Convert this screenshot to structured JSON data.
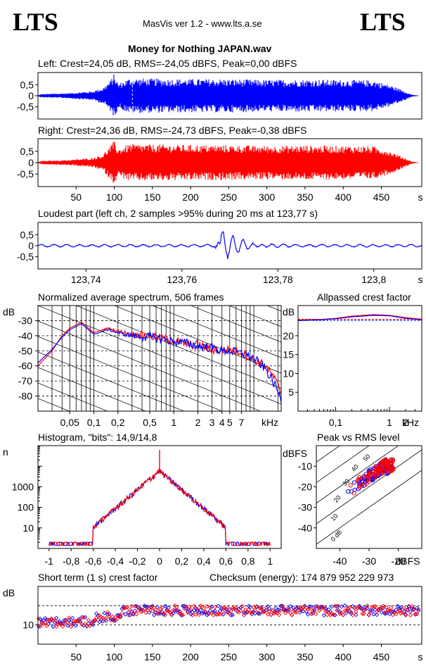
{
  "header": {
    "logo_left": "LTS",
    "logo_right": "LTS",
    "app": "MasVis ver 1.2 - www.lts.a.se",
    "file_title": "Money for Nothing JAPAN.wav"
  },
  "panels": {
    "left_label": "Left: Crest=24,05 dB, RMS=-24,05 dBFS, Peak=0,00 dBFS",
    "right_label": "Right: Crest=24,36 dB, RMS=-24,73 dBFS, Peak=-0,38 dBFS",
    "loudest_label": "Loudest part (left  ch, 2 samples >95% during 20 ms at 123,77 s)",
    "spectrum_label": "Normalized average spectrum, 506 frames",
    "allpass_label": "Allpassed crest factor",
    "histogram_label": "Histogram, \"bits\": 14,9/14,8",
    "pvr_label": "Peak vs RMS level",
    "shortterm_label": "Short term (1 s) crest factor",
    "checksum_label": "Checksum (energy):  174 879 952 229 973"
  },
  "colors": {
    "left": "#0000ff",
    "right": "#ff0000",
    "grid": "#000000"
  },
  "chart_data": [
    {
      "type": "area",
      "name": "left-waveform",
      "y_ticks": [
        "0,5",
        "0",
        "-0,5"
      ],
      "ylim": [
        -1,
        1
      ],
      "xlim": [
        0,
        503
      ],
      "envelope_s": [
        0,
        2,
        5,
        15,
        40,
        70,
        85,
        95,
        100,
        105,
        120,
        150,
        200,
        250,
        300,
        350,
        400,
        440,
        460,
        475,
        490,
        500
      ],
      "envelope_amp": [
        0.01,
        0.05,
        0.08,
        0.09,
        0.12,
        0.2,
        0.35,
        0.7,
        1.0,
        0.55,
        0.8,
        0.78,
        0.76,
        0.76,
        0.72,
        0.74,
        0.72,
        0.7,
        0.5,
        0.3,
        0.05,
        0.0
      ],
      "marker_s": 123.77
    },
    {
      "type": "area",
      "name": "right-waveform",
      "y_ticks": [
        "0,5",
        "0",
        "-0,5"
      ],
      "x_ticks": [
        "50",
        "100",
        "150",
        "200",
        "250",
        "300",
        "350",
        "400",
        "450",
        "s"
      ],
      "x_tick_values": [
        50,
        100,
        150,
        200,
        250,
        300,
        350,
        400,
        450
      ],
      "ylim": [
        -1,
        1
      ],
      "xlim": [
        0,
        503
      ],
      "envelope_s": [
        0,
        2,
        5,
        15,
        40,
        70,
        85,
        95,
        100,
        105,
        120,
        150,
        200,
        250,
        300,
        350,
        400,
        440,
        460,
        475,
        490,
        500
      ],
      "envelope_amp": [
        0.01,
        0.05,
        0.08,
        0.09,
        0.12,
        0.2,
        0.35,
        0.75,
        0.95,
        0.6,
        0.82,
        0.8,
        0.78,
        0.77,
        0.74,
        0.76,
        0.74,
        0.72,
        0.52,
        0.3,
        0.05,
        0.0
      ]
    },
    {
      "type": "line",
      "name": "loudest-part",
      "y_ticks": [
        "0,5",
        "0",
        "-0,5"
      ],
      "x_ticks": [
        "123,74",
        "123,76",
        "123,78",
        "123,8",
        "s"
      ],
      "x_tick_values": [
        123.74,
        123.76,
        123.78,
        123.8
      ],
      "xlim": [
        123.73,
        123.81
      ],
      "ylim": [
        -1,
        1
      ],
      "transient_s": 123.768
    },
    {
      "type": "line",
      "name": "average-spectrum",
      "ylabel": "dB",
      "xlabel": "kHz",
      "y_ticks": [
        "-30",
        "-40",
        "-50",
        "-60",
        "-70",
        "-80"
      ],
      "y_tick_values": [
        -30,
        -40,
        -50,
        -60,
        -70,
        -80
      ],
      "ylim": [
        -90,
        -20
      ],
      "x_ticks": [
        "0,05",
        "0,1",
        "0,2",
        "0,5",
        "1",
        "2",
        "3",
        "4",
        "5",
        "7"
      ],
      "x_tick_values": [
        0.05,
        0.1,
        0.2,
        0.5,
        1,
        2,
        3,
        4,
        5,
        7
      ],
      "xlim_khz": [
        0.02,
        22
      ],
      "x_khz": [
        0.02,
        0.03,
        0.04,
        0.05,
        0.07,
        0.1,
        0.15,
        0.2,
        0.3,
        0.5,
        0.7,
        1,
        1.5,
        2,
        3,
        4,
        5,
        7,
        10,
        14,
        18,
        22
      ],
      "series": [
        {
          "values": [
            -60,
            -50,
            -40,
            -35,
            -31,
            -38,
            -35,
            -37,
            -39,
            -40,
            -42,
            -43,
            -46,
            -46,
            -49,
            -50,
            -49,
            -51,
            -56,
            -60,
            -68,
            -78
          ]
        },
        {
          "values": [
            -58,
            -49,
            -41,
            -36,
            -32,
            -39,
            -36,
            -38,
            -40,
            -41,
            -42,
            -44,
            -45,
            -47,
            -48,
            -50,
            -50,
            -52,
            -55,
            -62,
            -72,
            -82
          ]
        }
      ]
    },
    {
      "type": "line",
      "name": "allpassed-crest",
      "ylabel": "dB",
      "xlabel": "kHz",
      "y_ticks": [
        "20",
        "15",
        "10",
        "5"
      ],
      "y_tick_values": [
        20,
        15,
        10,
        5
      ],
      "ylim": [
        0,
        28
      ],
      "x_ticks": [
        "0,1",
        "1",
        "2"
      ],
      "x_tick_values": [
        0.1,
        1,
        2
      ],
      "xlim_khz": [
        0.02,
        4
      ],
      "x_khz": [
        0.02,
        0.05,
        0.1,
        0.2,
        0.5,
        1,
        2,
        4
      ],
      "series": [
        {
          "values": [
            24.2,
            24.3,
            24.6,
            25.2,
            25.6,
            25.4,
            24.8,
            24.4
          ]
        },
        {
          "values": [
            24.0,
            24.2,
            24.5,
            25.0,
            25.4,
            25.3,
            24.6,
            24.2
          ]
        }
      ],
      "ref_lines": [
        24.05,
        24.36
      ]
    },
    {
      "type": "line",
      "name": "histogram",
      "ylabel": "n",
      "y_ticks": [
        "1000",
        "100",
        "10"
      ],
      "y_tick_values": [
        1000,
        100,
        10
      ],
      "ylim_log": [
        1,
        100000
      ],
      "x_ticks": [
        "-1",
        "-0,8",
        "-0,6",
        "-0,4",
        "-0,2",
        "0",
        "0,2",
        "0,4",
        "0,6",
        "0,8",
        "1"
      ],
      "x_tick_values": [
        -1,
        -0.8,
        -0.6,
        -0.4,
        -0.2,
        0,
        0.2,
        0.4,
        0.6,
        0.8,
        1
      ],
      "xlim": [
        -1.1,
        1.1
      ],
      "peak_count": 6000
    },
    {
      "type": "scatter",
      "name": "peak-vs-rms",
      "ylabel": "dBFS",
      "xlabel": "dBFS",
      "y_ticks": [
        "-10",
        "-20",
        "-30",
        "-40"
      ],
      "y_tick_values": [
        -10,
        -20,
        -30,
        -40
      ],
      "x_ticks": [
        "-40",
        "-30",
        "-20"
      ],
      "x_tick_values": [
        -40,
        -30,
        -20
      ],
      "xlim": [
        -48,
        -12
      ],
      "ylim": [
        -50,
        0
      ],
      "diagonals_db": [
        0,
        10,
        20,
        30,
        40,
        50
      ],
      "diagonal_labels": [
        "0 dB",
        "10",
        "20",
        "30",
        "40",
        "50"
      ]
    },
    {
      "type": "scatter",
      "name": "short-term-crest",
      "ylabel": "dB",
      "y_ticks": [
        "10"
      ],
      "y_tick_values": [
        10
      ],
      "ylim": [
        0,
        30
      ],
      "ref_lines": [
        10,
        20
      ],
      "x_ticks": [
        "50",
        "100",
        "150",
        "200",
        "250",
        "300",
        "350",
        "400",
        "450",
        "s"
      ],
      "x_tick_values": [
        50,
        100,
        150,
        200,
        250,
        300,
        350,
        400,
        450
      ],
      "xlim": [
        0,
        503
      ]
    }
  ]
}
